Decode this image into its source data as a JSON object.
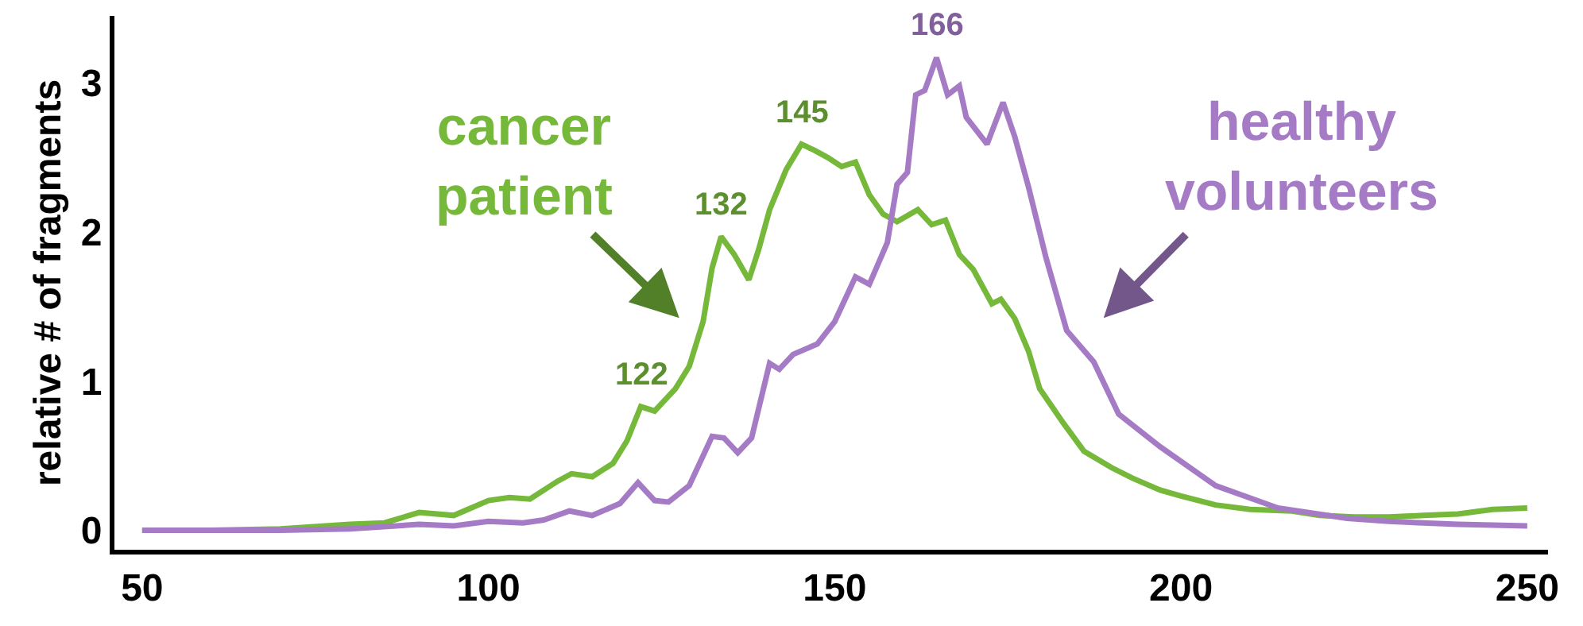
{
  "chart_data": {
    "type": "line",
    "ylabel": "relative # of fragments",
    "xlim": [
      46,
      253
    ],
    "xticks": [
      50,
      100,
      150,
      200,
      250
    ],
    "ylim": [
      -0.13,
      3.45
    ],
    "yticks": [
      0,
      1,
      2,
      3
    ],
    "grid": false,
    "legend": false,
    "marker": "none",
    "line_style": "solid",
    "series": [
      {
        "name": "cancer patient",
        "color": "#76b83a",
        "x": [
          50,
          60,
          70,
          80,
          85,
          90,
          95,
          100,
          103,
          106,
          110,
          112,
          115,
          118,
          120,
          122,
          124,
          127,
          129,
          131,
          132.3,
          133.6,
          135.5,
          137.6,
          139,
          140.6,
          143,
          145.2,
          147,
          149,
          151,
          153,
          155,
          157,
          159,
          162,
          164,
          166,
          168,
          170,
          172.7,
          174,
          176,
          178,
          179.6,
          183,
          186,
          190,
          193,
          197,
          200,
          205,
          210,
          216,
          220,
          225,
          230,
          235,
          240,
          245,
          250
        ],
        "values": [
          0,
          0,
          0.01,
          0.04,
          0.05,
          0.12,
          0.1,
          0.2,
          0.22,
          0.21,
          0.33,
          0.38,
          0.36,
          0.45,
          0.6,
          0.83,
          0.8,
          0.95,
          1.1,
          1.4,
          1.76,
          1.97,
          1.85,
          1.68,
          1.88,
          2.15,
          2.42,
          2.59,
          2.55,
          2.5,
          2.44,
          2.47,
          2.25,
          2.12,
          2.07,
          2.15,
          2.05,
          2.08,
          1.85,
          1.75,
          1.52,
          1.55,
          1.42,
          1.2,
          0.95,
          0.72,
          0.53,
          0.42,
          0.35,
          0.27,
          0.23,
          0.17,
          0.14,
          0.13,
          0.1,
          0.09,
          0.09,
          0.1,
          0.11,
          0.14,
          0.15
        ]
      },
      {
        "name": "healthy volunteers",
        "color": "#a57bc6",
        "x": [
          50,
          60,
          70,
          80,
          90,
          95,
          100,
          105,
          108,
          111.7,
          115,
          119,
          121.6,
          124,
          126,
          129,
          132.3,
          134,
          136,
          138,
          140.6,
          142,
          144,
          147.5,
          150,
          153,
          155,
          157.6,
          159,
          160.5,
          161.7,
          163,
          164.7,
          166.3,
          168,
          169,
          172,
          174.3,
          176,
          178,
          180.5,
          183.5,
          187.4,
          191,
          197,
          205,
          214,
          224,
          230,
          240,
          250
        ],
        "values": [
          0,
          0,
          0,
          0.01,
          0.04,
          0.03,
          0.06,
          0.05,
          0.07,
          0.13,
          0.1,
          0.18,
          0.32,
          0.2,
          0.19,
          0.3,
          0.63,
          0.62,
          0.52,
          0.62,
          1.12,
          1.08,
          1.18,
          1.25,
          1.4,
          1.7,
          1.65,
          1.93,
          2.32,
          2.4,
          2.92,
          2.95,
          3.17,
          2.92,
          2.98,
          2.77,
          2.59,
          2.87,
          2.64,
          2.3,
          1.83,
          1.34,
          1.13,
          0.78,
          0.56,
          0.3,
          0.15,
          0.08,
          0.06,
          0.04,
          0.03
        ]
      }
    ],
    "annotations": [
      {
        "text": "122",
        "x": 122,
        "y": 0.83
      },
      {
        "text": "132",
        "x": 133.6,
        "y": 1.97
      },
      {
        "text": "145",
        "x": 145.2,
        "y": 2.59
      },
      {
        "text": "166",
        "x": 164.7,
        "y": 3.17
      }
    ]
  }
}
